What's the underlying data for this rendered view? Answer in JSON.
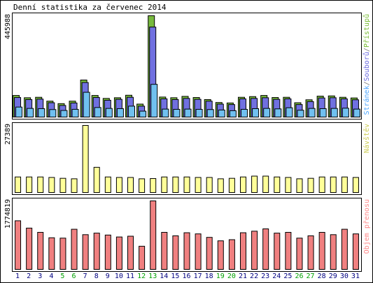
{
  "chart_data": {
    "type": "bar",
    "title": "Denní statistika za červenec 2014",
    "categories": [
      "1",
      "2",
      "3",
      "4",
      "5",
      "6",
      "7",
      "8",
      "9",
      "10",
      "11",
      "12",
      "13",
      "14",
      "15",
      "16",
      "17",
      "18",
      "19",
      "20",
      "21",
      "22",
      "23",
      "24",
      "25",
      "26",
      "27",
      "28",
      "29",
      "30",
      "31"
    ],
    "weekend_days": [
      "5",
      "6",
      "12",
      "13",
      "19",
      "20",
      "26",
      "27"
    ],
    "panels": [
      {
        "name": "hits",
        "ymax_label": "445988",
        "ylim": [
          0,
          445988
        ],
        "legend_parts": [
          {
            "text": "Stránek",
            "color": "#4da6ff"
          },
          {
            "text": "/",
            "color": "#777777"
          },
          {
            "text": "Souborů",
            "color": "#6a6ae0"
          },
          {
            "text": "/",
            "color": "#777777"
          },
          {
            "text": "Přístupů",
            "color": "#77bb33"
          }
        ],
        "series": [
          {
            "name": "Přístupů",
            "color": "#77b93d",
            "values": [
              95000,
              85000,
              87000,
              70000,
              59000,
              70000,
              163000,
              95000,
              82000,
              85000,
              96000,
              57000,
              445988,
              88000,
              85000,
              91000,
              86000,
              77000,
              64000,
              62000,
              87000,
              90000,
              95000,
              86000,
              87000,
              63000,
              76000,
              92000,
              93000,
              87000,
              84000
            ]
          },
          {
            "name": "Souborů",
            "color": "#7070e0",
            "values": [
              86000,
              77000,
              79000,
              63000,
              51000,
              62000,
              152000,
              86000,
              74000,
              78000,
              87000,
              48000,
              396000,
              80000,
              77000,
              82000,
              78000,
              70000,
              57000,
              55000,
              80000,
              82000,
              85000,
              78000,
              80000,
              55000,
              68000,
              84000,
              85000,
              80000,
              76000
            ]
          },
          {
            "name": "Stránek",
            "color": "#70c0f0",
            "values": [
              44000,
              38000,
              37000,
              33000,
              29000,
              34000,
              109000,
              42000,
              38000,
              37000,
              48000,
              26000,
              144000,
              35000,
              34000,
              35000,
              34000,
              33000,
              31000,
              28000,
              34000,
              37000,
              38000,
              36000,
              41000,
              30000,
              38000,
              37000,
              38000,
              39000,
              35000
            ]
          }
        ]
      },
      {
        "name": "visits",
        "ymax_label": "27389",
        "ylim": [
          0,
          27389
        ],
        "legend_parts": [
          {
            "text": "Návštěv",
            "color": "#cccc55"
          }
        ],
        "series": [
          {
            "name": "Návštěv",
            "color": "#ffff99",
            "values": [
              6350,
              6350,
              6350,
              6150,
              5800,
              5600,
              27389,
              10300,
              6350,
              6150,
              6150,
              5600,
              5700,
              6350,
              6350,
              6350,
              6150,
              6150,
              5600,
              5800,
              6350,
              6700,
              6700,
              6350,
              6150,
              5600,
              5800,
              6350,
              6350,
              6350,
              6150
            ]
          }
        ]
      },
      {
        "name": "volume",
        "ymax_label": "1774819",
        "ylim": [
          0,
          1774819
        ],
        "legend_parts": [
          {
            "text": "Objem přenosu",
            "color": "#ff8888"
          }
        ],
        "series": [
          {
            "name": "Objem přenosu",
            "color": "#f08080",
            "values": [
              1260000,
              1070000,
              960000,
              820000,
              810000,
              1040000,
              900000,
              940000,
              890000,
              840000,
              860000,
              600000,
              1774819,
              960000,
              870000,
              950000,
              920000,
              830000,
              740000,
              770000,
              950000,
              990000,
              1050000,
              940000,
              960000,
              810000,
              870000,
              960000,
              900000,
              1040000,
              920000
            ]
          }
        ]
      }
    ]
  },
  "colors": {
    "background": "#ffffff",
    "frame": "#000000",
    "weekday_label": "#000080",
    "weekend_label": "#00a000"
  }
}
